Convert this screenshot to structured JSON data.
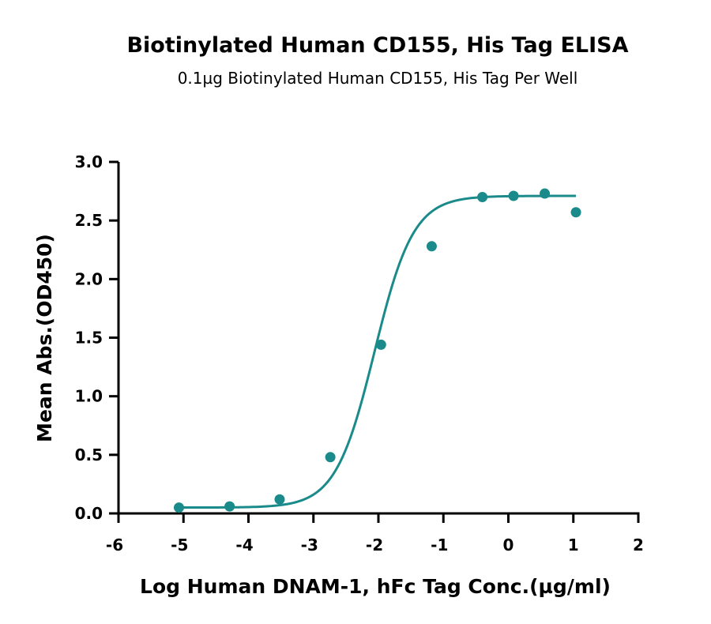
{
  "chart_data": {
    "type": "scatter",
    "title": "Biotinylated Human CD155, His Tag ELISA",
    "subtitle": "0.1µg Biotinylated Human CD155, His Tag Per Well",
    "xlabel": "Log Human DNAM-1, hFc Tag Conc.(µg/ml)",
    "ylabel": "Mean Abs.(OD450)",
    "xlim": [
      -6,
      2
    ],
    "ylim": [
      0,
      3.0
    ],
    "xticks": [
      "-6",
      "-5",
      "-4",
      "-3",
      "-2",
      "-1",
      "0",
      "1",
      "2"
    ],
    "yticks": [
      "0.0",
      "0.5",
      "1.0",
      "1.5",
      "2.0",
      "2.5",
      "3.0"
    ],
    "grid": false,
    "series": [
      {
        "type": "scatter",
        "color": "#1b8a8a",
        "x": [
          -5.07,
          -4.29,
          -3.52,
          -2.74,
          -1.96,
          -1.18,
          -0.4,
          0.08,
          0.56,
          1.04
        ],
        "y": [
          0.05,
          0.06,
          0.12,
          0.48,
          1.44,
          2.28,
          2.7,
          2.71,
          2.73,
          2.57
        ]
      },
      {
        "type": "line",
        "fit": "4PL",
        "color": "#1b8a8a",
        "x_range": [
          -5.07,
          1.04
        ],
        "params": {
          "bottom": 0.05,
          "top": 2.71,
          "logEC50": -2.06,
          "hill": 1.45
        }
      }
    ]
  }
}
